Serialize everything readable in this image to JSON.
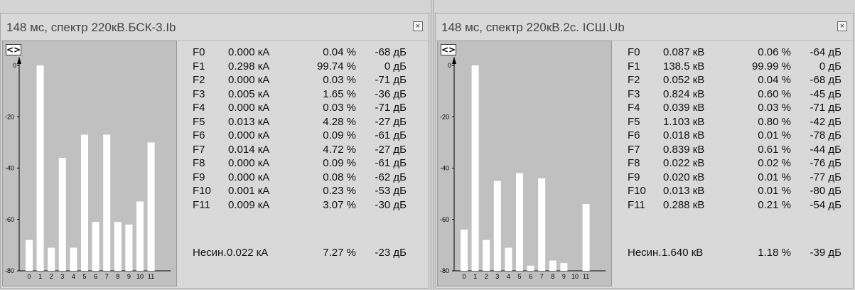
{
  "panels": [
    {
      "title": "148 мс, спектр 220кВ.БСК-3.Ib",
      "close_icon": "close-icon",
      "toggle_label": "<>",
      "y_ticks": [
        "0",
        "-20",
        "-40",
        "-60",
        "-80"
      ],
      "x_ticks": [
        "0",
        "1",
        "2",
        "3",
        "4",
        "5",
        "6",
        "7",
        "8",
        "9",
        "10",
        "11"
      ],
      "rows": [
        {
          "name": "F0",
          "value": "0.000 кА",
          "pct": "0.04 %",
          "db": "-68 дБ"
        },
        {
          "name": "F1",
          "value": "0.298 кА",
          "pct": "99.74 %",
          "db": "0 дБ"
        },
        {
          "name": "F2",
          "value": "0.000 кА",
          "pct": "0.03 %",
          "db": "-71 дБ"
        },
        {
          "name": "F3",
          "value": "0.005 кА",
          "pct": "1.65 %",
          "db": "-36 дБ"
        },
        {
          "name": "F4",
          "value": "0.000 кА",
          "pct": "0.03 %",
          "db": "-71 дБ"
        },
        {
          "name": "F5",
          "value": "0.013 кА",
          "pct": "4.28 %",
          "db": "-27 дБ"
        },
        {
          "name": "F6",
          "value": "0.000 кА",
          "pct": "0.09 %",
          "db": "-61 дБ"
        },
        {
          "name": "F7",
          "value": "0.014 кА",
          "pct": "4.72 %",
          "db": "-27 дБ"
        },
        {
          "name": "F8",
          "value": "0.000 кА",
          "pct": "0.09 %",
          "db": "-61 дБ"
        },
        {
          "name": "F9",
          "value": "0.000 кА",
          "pct": "0.08 %",
          "db": "-62 дБ"
        },
        {
          "name": "F10",
          "value": "0.001 кА",
          "pct": "0.23 %",
          "db": "-53 дБ"
        },
        {
          "name": "F11",
          "value": "0.009 кА",
          "pct": "3.07 %",
          "db": "-30 дБ"
        }
      ],
      "unbalance": {
        "name": "Несин.",
        "value": "0.022 кА",
        "pct": "7.27 %",
        "db": "-23 дБ"
      }
    },
    {
      "title": "148 мс, спектр 220кВ.2с. ICШ.Ub",
      "close_icon": "close-icon",
      "toggle_label": "<>",
      "y_ticks": [
        "0",
        "-20",
        "-40",
        "-60",
        "-80"
      ],
      "x_ticks": [
        "0",
        "1",
        "2",
        "3",
        "4",
        "5",
        "6",
        "7",
        "8",
        "9",
        "10",
        "11"
      ],
      "rows": [
        {
          "name": "F0",
          "value": "0.087 кВ",
          "pct": "0.06 %",
          "db": "-64 дБ"
        },
        {
          "name": "F1",
          "value": "138.5 кВ",
          "pct": "99.99 %",
          "db": "0 дБ"
        },
        {
          "name": "F2",
          "value": "0.052 кВ",
          "pct": "0.04 %",
          "db": "-68 дБ"
        },
        {
          "name": "F3",
          "value": "0.824 кВ",
          "pct": "0.60 %",
          "db": "-45 дБ"
        },
        {
          "name": "F4",
          "value": "0.039 кВ",
          "pct": "0.03 %",
          "db": "-71 дБ"
        },
        {
          "name": "F5",
          "value": "1.103 кВ",
          "pct": "0.80 %",
          "db": "-42 дБ"
        },
        {
          "name": "F6",
          "value": "0.018 кВ",
          "pct": "0.01 %",
          "db": "-78 дБ"
        },
        {
          "name": "F7",
          "value": "0.839 кВ",
          "pct": "0.61 %",
          "db": "-44 дБ"
        },
        {
          "name": "F8",
          "value": "0.022 кВ",
          "pct": "0.02 %",
          "db": "-76 дБ"
        },
        {
          "name": "F9",
          "value": "0.020 кВ",
          "pct": "0.01 %",
          "db": "-77 дБ"
        },
        {
          "name": "F10",
          "value": "0.013 кВ",
          "pct": "0.01 %",
          "db": "-80 дБ"
        },
        {
          "name": "F11",
          "value": "0.288 кВ",
          "pct": "0.21 %",
          "db": "-54 дБ"
        }
      ],
      "unbalance": {
        "name": "Несин.",
        "value": "1.640 кВ",
        "pct": "1.18 %",
        "db": "-39 дБ"
      }
    }
  ],
  "chart_data": [
    {
      "type": "bar",
      "categories": [
        "0",
        "1",
        "2",
        "3",
        "4",
        "5",
        "6",
        "7",
        "8",
        "9",
        "10",
        "11"
      ],
      "values": [
        -68,
        0,
        -71,
        -36,
        -71,
        -27,
        -61,
        -27,
        -61,
        -62,
        -53,
        -30
      ],
      "ylim": [
        -80,
        0
      ],
      "bar_color": "#ffffff",
      "background_color": "#c0c0c0"
    },
    {
      "type": "bar",
      "categories": [
        "0",
        "1",
        "2",
        "3",
        "4",
        "5",
        "6",
        "7",
        "8",
        "9",
        "10",
        "11"
      ],
      "values": [
        -64,
        0,
        -68,
        -45,
        -71,
        -42,
        -78,
        -44,
        -76,
        -77,
        -80,
        -54
      ],
      "ylim": [
        -80,
        0
      ],
      "bar_color": "#ffffff",
      "background_color": "#c0c0c0"
    }
  ]
}
